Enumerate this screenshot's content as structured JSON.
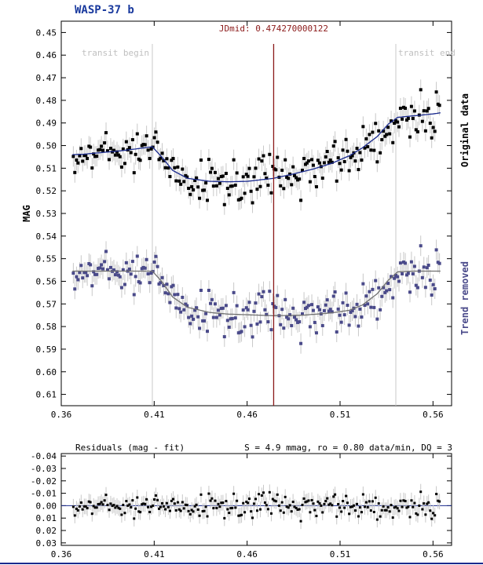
{
  "chart_data": [
    {
      "type": "scatter",
      "title": "WASP-37 b",
      "ylabel": "MAG",
      "xlim": [
        0.36,
        0.57
      ],
      "ylim": [
        0.615,
        0.445
      ],
      "y_inverted": true,
      "xticks": [
        "0.36",
        "0.41",
        "0.46",
        "0.51",
        "0.56"
      ],
      "yticks": [
        "0.45",
        "0.46",
        "0.47",
        "0.48",
        "0.49",
        "0.50",
        "0.51",
        "0.52",
        "0.53",
        "0.54",
        "0.55",
        "0.56",
        "0.57",
        "0.58",
        "0.59",
        "0.60",
        "0.61"
      ],
      "annotations": {
        "jdmid_label": "JDmid: 0.474270000122",
        "jdmid_x": 0.47427,
        "transit_begin_label": "transit begin",
        "transit_begin_x": 0.409,
        "transit_end_label": "transit end",
        "transit_end_x": 0.54
      },
      "series": [
        {
          "name": "Original data",
          "color": "#000000",
          "model_color": "#1a2a8e",
          "model": {
            "x": [
              0.366,
              0.372,
              0.38,
              0.39,
              0.4,
              0.409,
              0.414,
              0.42,
              0.428,
              0.44,
              0.45,
              0.46,
              0.474,
              0.485,
              0.495,
              0.505,
              0.515,
              0.522,
              0.53,
              0.536,
              0.541,
              0.55,
              0.56,
              0.564
            ],
            "y": [
              0.504,
              0.5038,
              0.5032,
              0.5025,
              0.5015,
              0.5005,
              0.505,
              0.511,
              0.5145,
              0.5158,
              0.516,
              0.5158,
              0.5145,
              0.5125,
              0.5105,
              0.508,
              0.5045,
              0.501,
              0.496,
              0.4905,
              0.4875,
              0.4868,
              0.486,
              0.4855
            ]
          },
          "points": {
            "x": [],
            "y": []
          }
        },
        {
          "name": "Trend removed",
          "color": "#4a4a8a",
          "model_color": "#707070",
          "model": {
            "x": [
              0.366,
              0.38,
              0.395,
              0.409,
              0.414,
              0.42,
              0.428,
              0.44,
              0.45,
              0.46,
              0.474,
              0.49,
              0.505,
              0.515,
              0.522,
              0.53,
              0.536,
              0.541,
              0.55,
              0.564
            ],
            "y": [
              0.5555,
              0.5555,
              0.5555,
              0.5555,
              0.56,
              0.567,
              0.5715,
              0.5738,
              0.5745,
              0.5748,
              0.5752,
              0.575,
              0.574,
              0.5728,
              0.5705,
              0.5655,
              0.5595,
              0.5558,
              0.5555,
              0.5555
            ]
          },
          "points": {
            "x": [],
            "y": []
          }
        }
      ]
    },
    {
      "type": "scatter",
      "title": "Residuals (mag - fit)",
      "stats": "S = 4.9 mmag, ro = 0.80 data/min, DQ = 3",
      "xlim": [
        0.36,
        0.57
      ],
      "ylim": [
        0.032,
        -0.042
      ],
      "y_inverted": true,
      "xticks": [
        "0.36",
        "0.41",
        "0.46",
        "0.51",
        "0.56"
      ],
      "yticks": [
        "-0.04",
        "-0.03",
        "-0.02",
        "-0.01",
        "0.00",
        "0.01",
        "0.02",
        "0.03"
      ],
      "color": "#000000",
      "points": {
        "x": [],
        "y": []
      }
    }
  ],
  "labels": {
    "series1_side": "Original data",
    "series2_side": "Trend removed"
  },
  "colors": {
    "jdmid_line": "#8b1a1a",
    "transit_lines": "#bbbbbb",
    "error_bars": "#c8c8c8",
    "title": "#1a3a9e",
    "side_trend": "#4a4a8a"
  }
}
